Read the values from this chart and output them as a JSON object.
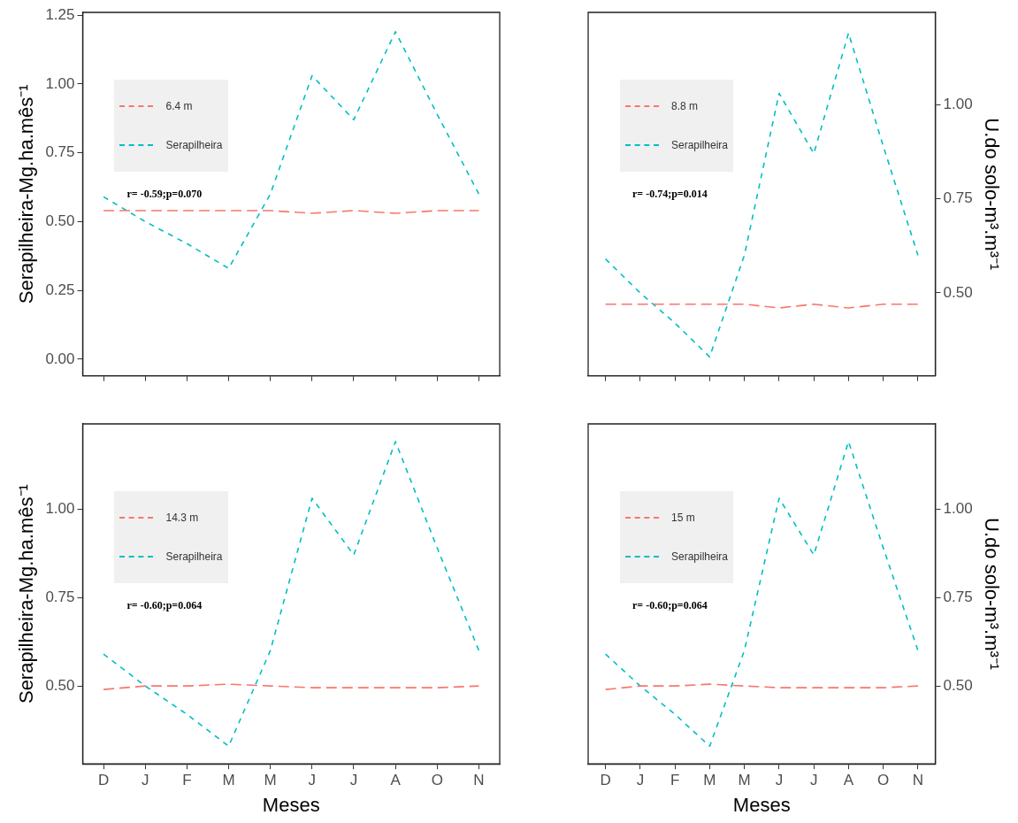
{
  "chart_data": [
    {
      "type": "line",
      "ylabel": "Serapilheira-Mg.ha.mês⁻¹",
      "categories": [
        null,
        null,
        null,
        null,
        null,
        null,
        null,
        null,
        null,
        null
      ],
      "ylim": [
        -0.06,
        1.26
      ],
      "yticks": [
        {
          "value": 0,
          "label": "0.00"
        },
        {
          "value": 0.25,
          "label": "0.25"
        },
        {
          "value": 0.5,
          "label": "0.50"
        },
        {
          "value": 0.75,
          "label": "0.75"
        },
        {
          "value": 1,
          "label": "1.00"
        },
        {
          "value": 1.25,
          "label": "1.25"
        }
      ],
      "legend": "top left",
      "line_style": "dashed",
      "grid": false,
      "annotations": [
        "r= -0.59;p=0.070"
      ],
      "series": [
        {
          "name": "6.4 m",
          "color": "#f8766d",
          "values": [
            0.54,
            0.54,
            0.54,
            0.54,
            0.54,
            0.53,
            0.54,
            0.53,
            0.54,
            0.54
          ]
        },
        {
          "name": "Serapilheira",
          "color": "#00bfc4",
          "values": [
            0.59,
            0.5,
            0.42,
            0.33,
            0.6,
            1.03,
            0.87,
            1.19,
            0.89,
            0.6
          ]
        }
      ]
    },
    {
      "type": "line",
      "ylabel": "U.do solo-m³.m³⁻¹",
      "categories": [
        null,
        null,
        null,
        null,
        null,
        null,
        null,
        null,
        null,
        null
      ],
      "ylim": [
        0.28,
        1.245
      ],
      "yticks": [
        {
          "value": 0.5,
          "label": "0.50"
        },
        {
          "value": 0.75,
          "label": "0.75"
        },
        {
          "value": 1,
          "label": "1.00"
        }
      ],
      "legend": "top left",
      "line_style": "dashed",
      "grid": false,
      "annotations": [
        "r= -0.74;p=0.014"
      ],
      "series": [
        {
          "name": "8.8 m",
          "color": "#f8766d",
          "values": [
            0.47,
            0.47,
            0.47,
            0.47,
            0.47,
            0.46,
            0.47,
            0.46,
            0.47,
            0.47
          ]
        },
        {
          "name": "Serapilheira",
          "color": "#00bfc4",
          "values": [
            0.59,
            0.5,
            0.42,
            0.33,
            0.6,
            1.03,
            0.87,
            1.19,
            0.89,
            0.6
          ]
        }
      ]
    },
    {
      "type": "line",
      "xlabel": "Meses",
      "ylabel": "Serapilheira-Mg.ha.mês⁻¹",
      "categories": [
        "D",
        "J",
        "F",
        "M",
        "M",
        "J",
        "J",
        "A",
        "O",
        "N"
      ],
      "ylim": [
        0.28,
        1.24
      ],
      "yticks": [
        {
          "value": 0.5,
          "label": "0.50"
        },
        {
          "value": 0.75,
          "label": "0.75"
        },
        {
          "value": 1,
          "label": "1.00"
        }
      ],
      "legend": "top left",
      "line_style": "dashed",
      "grid": false,
      "annotations": [
        "r= -0.60;p=0.064"
      ],
      "series": [
        {
          "name": "14.3 m",
          "color": "#f8766d",
          "values": [
            0.49,
            0.5,
            0.5,
            0.505,
            0.5,
            0.495,
            0.495,
            0.495,
            0.495,
            0.5
          ]
        },
        {
          "name": "Serapilheira",
          "color": "#00bfc4",
          "values": [
            0.59,
            0.5,
            0.42,
            0.33,
            0.6,
            1.03,
            0.87,
            1.19,
            0.89,
            0.6
          ]
        }
      ]
    },
    {
      "type": "line",
      "xlabel": "Meses",
      "y2label": "U.do solo-m³.m³⁻¹",
      "categories": [
        "D",
        "J",
        "F",
        "M",
        "M",
        "J",
        "J",
        "A",
        "O",
        "N"
      ],
      "y2lim": [
        0.28,
        1.24
      ],
      "y2ticks": [
        {
          "value": 0.5,
          "label": "0.50"
        },
        {
          "value": 0.75,
          "label": "0.75"
        },
        {
          "value": 1,
          "label": "1.00"
        }
      ],
      "legend": "top left",
      "line_style": "dashed",
      "grid": false,
      "annotations": [
        "r= -0.60;p=0.064"
      ],
      "series": [
        {
          "name": "15 m",
          "color": "#f8766d",
          "axis": "y2",
          "values": [
            0.49,
            0.5,
            0.5,
            0.505,
            0.5,
            0.495,
            0.495,
            0.495,
            0.495,
            0.5
          ]
        },
        {
          "name": "Serapilheira",
          "color": "#00bfc4",
          "axis": "y2",
          "values": [
            0.59,
            0.5,
            0.42,
            0.33,
            0.6,
            1.03,
            0.87,
            1.19,
            0.89,
            0.6
          ]
        }
      ]
    }
  ]
}
